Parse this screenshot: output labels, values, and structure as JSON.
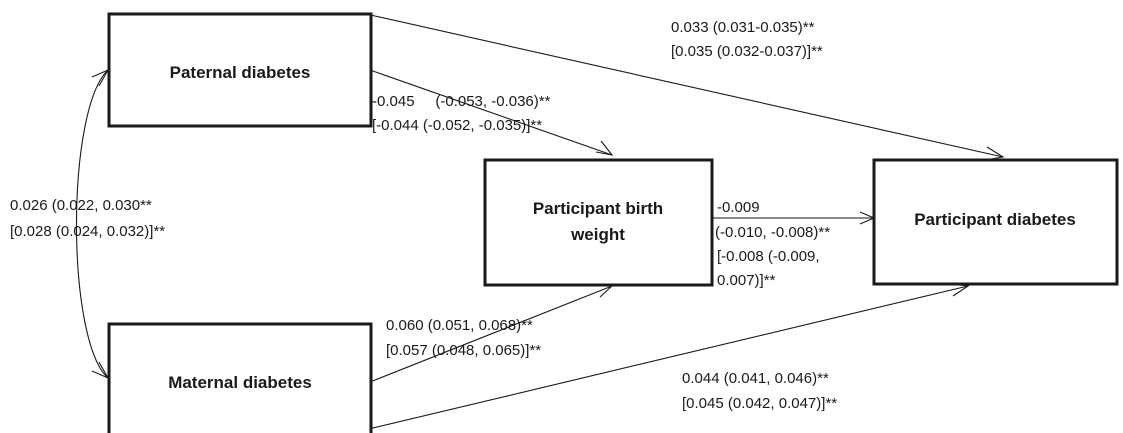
{
  "nodes": {
    "paternal": "Paternal diabetes",
    "maternal": "Maternal diabetes",
    "birth_weight_line1": "Participant birth",
    "birth_weight_line2": "weight",
    "participant_diabetes": "Participant diabetes"
  },
  "paths": {
    "paternal_to_participant": {
      "line1": "0.033 (0.031-0.035)**",
      "line2": "[0.035 (0.032-0.037)]**"
    },
    "paternal_to_birthweight": {
      "line1": "-0.045     (-0.053, -0.036)**",
      "line2": "[-0.044 (-0.052, -0.035)]**"
    },
    "paternal_maternal_correlation": {
      "line1": "0.026 (0.022, 0.030**",
      "line2": "[0.028 (0.024, 0.032)]**"
    },
    "birthweight_to_participant": {
      "line1": "-0.009",
      "line2": "(-0.010, -0.008)**",
      "line3": "[-0.008 (-0.009,",
      "line4": "0.007)]**"
    },
    "maternal_to_birthweight": {
      "line1": "0.060 (0.051, 0.068)**",
      "line2": "[0.057 (0.048, 0.065)]**"
    },
    "maternal_to_participant": {
      "line1": "0.044 (0.041, 0.046)**",
      "line2": "[0.045 (0.042, 0.047)]**"
    }
  },
  "colors": {
    "stroke": "#1a1a1a",
    "background": "#ffffff"
  }
}
